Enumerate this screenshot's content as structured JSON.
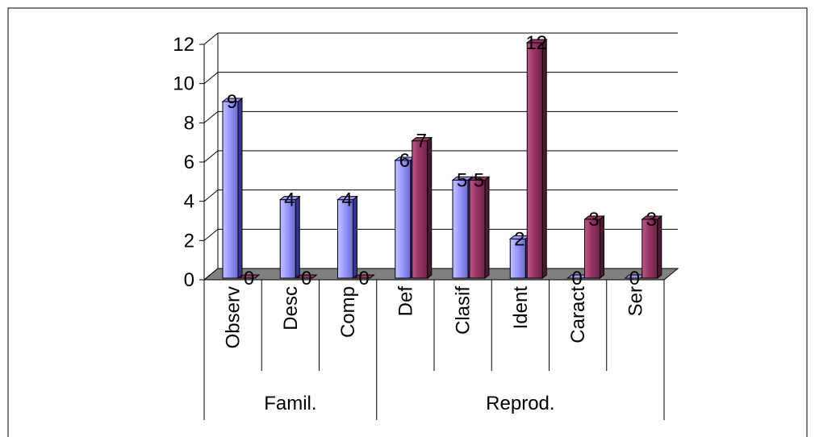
{
  "chart_data": {
    "type": "bar",
    "title": "",
    "xlabel": "",
    "ylabel": "",
    "ylim": [
      0,
      12
    ],
    "yticks": [
      "0",
      "2",
      "4",
      "6",
      "8",
      "10",
      "12"
    ],
    "grid": true,
    "legend": "none",
    "style": "3d-cylinder",
    "categories": [
      "Observ",
      "Desc",
      "Comp",
      "Def",
      "Clasif",
      "Ident",
      "Caract",
      "Ser"
    ],
    "groups": [
      {
        "label": "Famil.",
        "span": 3
      },
      {
        "label": "Reprod.",
        "span": 5
      }
    ],
    "series": [
      {
        "values": [
          9,
          4,
          4,
          6,
          5,
          2,
          0,
          0
        ],
        "labels": [
          "9",
          "4",
          "4",
          "6",
          "5",
          "2",
          "0",
          "0"
        ],
        "color": "#9999ff",
        "edge": "#333399"
      },
      {
        "values": [
          0,
          0,
          0,
          7,
          5,
          12,
          3,
          3
        ],
        "labels": [
          "0",
          "0",
          "0",
          "7",
          "5",
          "12",
          "3",
          "3"
        ],
        "color": "#993366",
        "edge": "#4d1a33"
      }
    ],
    "floor_color": "#808080"
  }
}
